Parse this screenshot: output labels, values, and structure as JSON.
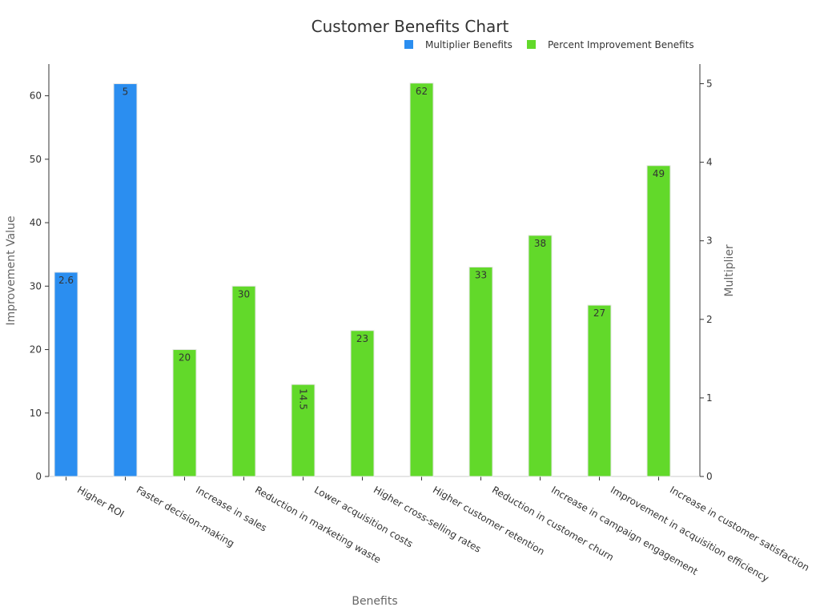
{
  "chart_data": {
    "type": "bar",
    "title": "Customer Benefits Chart",
    "xlabel": "Benefits",
    "ylabel": "Improvement Value",
    "y2label": "Multiplier",
    "ylim": [
      0,
      65
    ],
    "y2lim": [
      0,
      5.25
    ],
    "yticks": [
      0,
      10,
      20,
      30,
      40,
      50,
      60
    ],
    "y2ticks": [
      0,
      1,
      2,
      3,
      4,
      5
    ],
    "legend_position": "top-right",
    "categories": [
      "Higher ROI",
      "Faster decision-making",
      "Increase in sales",
      "Reduction in marketing waste",
      "Lower acquisition costs",
      "Higher cross-selling rates",
      "Higher customer retention",
      "Reduction in customer churn",
      "Increase in campaign engagement",
      "Improvement in acquisition efficiency",
      "Increase in customer satisfaction"
    ],
    "series": [
      {
        "name": "Multiplier Benefits",
        "color": "#2b8ef0",
        "axis": "right",
        "values": [
          2.6,
          5,
          null,
          null,
          null,
          null,
          null,
          null,
          null,
          null,
          null
        ],
        "labels": [
          "2.6",
          "5",
          "",
          "",
          "",
          "",
          "",
          "",
          "",
          "",
          ""
        ]
      },
      {
        "name": "Percent Improvement Benefits",
        "color": "#62d92a",
        "axis": "left",
        "values": [
          null,
          null,
          20,
          30,
          14.5,
          23,
          62,
          33,
          38,
          27,
          49
        ],
        "labels": [
          "",
          "",
          "20",
          "30",
          "14.5",
          "23",
          "62",
          "33",
          "38",
          "27",
          "49"
        ]
      }
    ]
  }
}
